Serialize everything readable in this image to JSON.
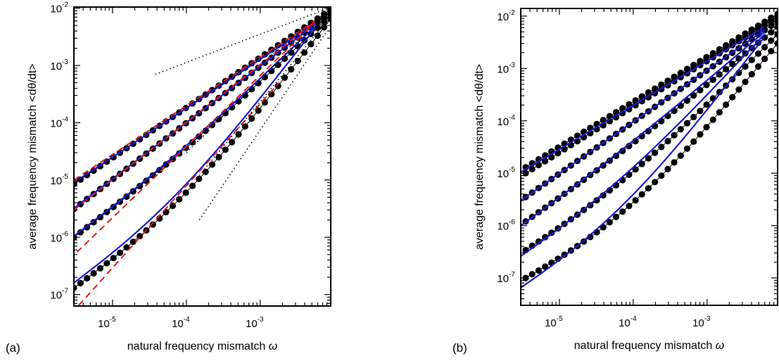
{
  "figure": {
    "panels": [
      "(a)",
      "(b)"
    ]
  },
  "chart_data": [
    {
      "type": "line",
      "panel_label": "(a)",
      "xlabel": "natural frequency mismatch",
      "xlabel_symbol": "ω",
      "ylabel": "average frequency mismatch <dθ/dt>",
      "x_scale": "log",
      "y_scale": "log",
      "xlim": [
        3e-06,
        0.009
      ],
      "ylim": [
        6.3e-08,
        0.0105
      ],
      "x_tick_labels": [
        {
          "value": 1e-05,
          "base": "10",
          "exp": "-5"
        },
        {
          "value": 0.0001,
          "base": "10",
          "exp": "-4"
        },
        {
          "value": 0.001,
          "base": "10",
          "exp": "-3"
        }
      ],
      "y_tick_labels": [
        {
          "value": 1e-07,
          "base": "10",
          "exp": "-7"
        },
        {
          "value": 1e-06,
          "base": "10",
          "exp": "-6"
        },
        {
          "value": 1e-05,
          "base": "10",
          "exp": "-5"
        },
        {
          "value": 0.0001,
          "base": "10",
          "exp": "-4"
        },
        {
          "value": 0.001,
          "base": "10",
          "exp": "-3"
        },
        {
          "value": 0.01,
          "base": "10",
          "exp": "-2"
        }
      ],
      "grid": false,
      "n_points": 40,
      "series": [
        {
          "style": "simulation (black dots)",
          "start": [
            3e-06,
            8.5e-06
          ],
          "end": [
            0.009,
            0.0095
          ],
          "bend": 0
        },
        {
          "style": "simulation (black dots)",
          "start": [
            3e-06,
            3.1e-06
          ],
          "end": [
            0.009,
            0.0085
          ],
          "bend": 0
        },
        {
          "style": "simulation (black dots)",
          "start": [
            3e-06,
            1e-06
          ],
          "end": [
            0.009,
            0.0075
          ],
          "bend": 0.15
        },
        {
          "style": "simulation (black dots)",
          "start": [
            3e-06,
            1.3e-07
          ],
          "end": [
            0.009,
            0.0065
          ],
          "bend": 0.45
        },
        {
          "style": "fit (blue solid)",
          "start": [
            3e-06,
            9e-06
          ],
          "end": [
            0.0055,
            0.0055
          ],
          "bend": 0
        },
        {
          "style": "fit (blue solid)",
          "start": [
            3e-06,
            3.2e-06
          ],
          "end": [
            0.0055,
            0.0052
          ],
          "bend": 0
        },
        {
          "style": "fit (blue solid)",
          "start": [
            3e-06,
            1.05e-06
          ],
          "end": [
            0.0055,
            0.0048
          ],
          "bend": 0.15
        },
        {
          "style": "fit (blue solid)",
          "start": [
            3e-06,
            1.6e-07
          ],
          "end": [
            0.0055,
            0.0044
          ],
          "bend": 0.4
        },
        {
          "style": "asymptote (red dashed)",
          "start": [
            3e-06,
            1e-05
          ],
          "end": [
            0.0055,
            0.006
          ],
          "bend": 0
        },
        {
          "style": "asymptote (red dashed)",
          "start": [
            3e-06,
            3e-06
          ],
          "end": [
            0.0055,
            0.0058
          ],
          "bend": 0
        },
        {
          "style": "asymptote (red dashed)",
          "start": [
            3.3e-06,
            5.5e-07
          ],
          "end": [
            0.0055,
            0.0056
          ],
          "bend": 0
        },
        {
          "style": "asymptote (red dashed)",
          "start": [
            3.5e-06,
            6.5e-08
          ],
          "end": [
            0.0018,
            0.0005
          ],
          "bend": 0
        },
        {
          "style": "reference (black dotted)",
          "start": [
            3.8e-05,
            0.0007
          ],
          "end": [
            0.0075,
            0.0095
          ],
          "bend": 0
        },
        {
          "style": "reference (black dotted)",
          "start": [
            0.0001,
            3e-05
          ],
          "end": [
            0.008,
            0.0085
          ],
          "bend": 0
        },
        {
          "style": "reference (black dotted)",
          "start": [
            0.00015,
            1.2e-05
          ],
          "end": [
            0.008,
            0.006
          ],
          "bend": 0
        },
        {
          "style": "reference (black dotted)",
          "start": [
            0.00015,
            2e-06
          ],
          "end": [
            0.008,
            0.004
          ],
          "bend": 0
        }
      ]
    },
    {
      "type": "line",
      "panel_label": "(b)",
      "xlabel": "natural frequency mismatch",
      "xlabel_symbol": "ω",
      "ylabel": "average frequency mismatch <dθ/dt>",
      "x_scale": "log",
      "y_scale": "log",
      "xlim": [
        3e-06,
        0.009
      ],
      "ylim": [
        3e-08,
        0.014
      ],
      "x_tick_labels": [
        {
          "value": 1e-05,
          "base": "10",
          "exp": "-5"
        },
        {
          "value": 0.0001,
          "base": "10",
          "exp": "-4"
        },
        {
          "value": 0.001,
          "base": "10",
          "exp": "-3"
        }
      ],
      "y_tick_labels": [
        {
          "value": 1e-07,
          "base": "10",
          "exp": "-7"
        },
        {
          "value": 1e-06,
          "base": "10",
          "exp": "-6"
        },
        {
          "value": 1e-05,
          "base": "10",
          "exp": "-5"
        },
        {
          "value": 0.0001,
          "base": "10",
          "exp": "-4"
        },
        {
          "value": 0.001,
          "base": "10",
          "exp": "-3"
        },
        {
          "value": 0.01,
          "base": "10",
          "exp": "-2"
        }
      ],
      "grid": false,
      "n_points": 40,
      "series": [
        {
          "style": "simulation (black dots)",
          "start": [
            3.5e-06,
            1.3e-05
          ],
          "end": [
            0.009,
            0.011
          ],
          "bend": 0
        },
        {
          "style": "simulation (black dots)",
          "start": [
            3.5e-06,
            1e-05
          ],
          "end": [
            0.009,
            0.0095
          ],
          "bend": 0
        },
        {
          "style": "simulation (black dots)",
          "start": [
            3.5e-06,
            3.5e-06
          ],
          "end": [
            0.009,
            0.008
          ],
          "bend": 0
        },
        {
          "style": "simulation (black dots)",
          "start": [
            3.5e-06,
            1.2e-06
          ],
          "end": [
            0.009,
            0.0062
          ],
          "bend": 0.1
        },
        {
          "style": "simulation (black dots)",
          "start": [
            3.5e-06,
            3.4e-07
          ],
          "end": [
            0.009,
            0.0045
          ],
          "bend": 0.3
        },
        {
          "style": "simulation (black dots)",
          "start": [
            3.5e-06,
            1e-07
          ],
          "end": [
            0.009,
            0.003
          ],
          "bend": 0.55
        },
        {
          "style": "fit (blue solid)",
          "start": [
            3e-06,
            1.05e-05
          ],
          "end": [
            0.006,
            0.0062
          ],
          "bend": 0
        },
        {
          "style": "fit (blue solid)",
          "start": [
            3e-06,
            3e-06
          ],
          "end": [
            0.006,
            0.0055
          ],
          "bend": 0
        },
        {
          "style": "fit (blue solid)",
          "start": [
            3e-06,
            1e-06
          ],
          "end": [
            0.006,
            0.005
          ],
          "bend": 0.1
        },
        {
          "style": "fit (blue solid)",
          "start": [
            3e-06,
            2.6e-07
          ],
          "end": [
            0.006,
            0.0045
          ],
          "bend": 0.3
        },
        {
          "style": "fit (blue solid)",
          "start": [
            3e-06,
            6.5e-08
          ],
          "end": [
            0.006,
            0.004
          ],
          "bend": 0.5
        }
      ]
    }
  ]
}
